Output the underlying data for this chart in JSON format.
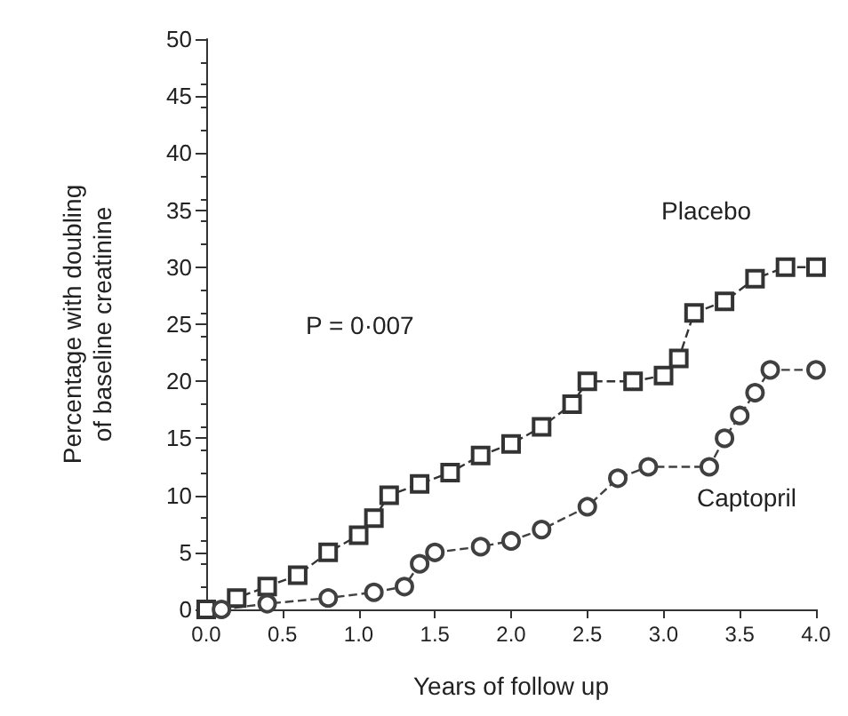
{
  "chart_data": {
    "type": "line",
    "xlabel": "Years of follow up",
    "ylabel": "Percentage with doubling\nof baseline creatinine",
    "annotations": [
      "P = 0·007"
    ],
    "series": [
      {
        "name": "Placebo",
        "color": "#333333",
        "marker": "square",
        "x": [
          0,
          0.2,
          0.4,
          0.6,
          0.8,
          1.0,
          1.1,
          1.2,
          1.4,
          1.6,
          1.8,
          2.0,
          2.2,
          2.4,
          2.5,
          2.8,
          3.0,
          3.1,
          3.2,
          3.4,
          3.6,
          3.8,
          4.0
        ],
        "values": [
          0,
          1,
          2,
          3,
          5,
          6.5,
          8,
          10,
          11,
          12,
          13.5,
          14.5,
          16,
          18,
          20,
          20,
          20.5,
          22,
          26,
          27,
          29,
          30,
          30
        ]
      },
      {
        "name": "Captopril",
        "color": "#404040",
        "marker": "circle",
        "x": [
          0.1,
          0.4,
          0.8,
          1.1,
          1.3,
          1.4,
          1.5,
          1.8,
          2.0,
          2.2,
          2.5,
          2.7,
          2.9,
          3.3,
          3.4,
          3.5,
          3.6,
          3.7,
          4.0
        ],
        "values": [
          0,
          0.5,
          1,
          1.5,
          2,
          4,
          5,
          5.5,
          6,
          7,
          9,
          11.5,
          12.5,
          12.5,
          15,
          17,
          19,
          21,
          21
        ]
      }
    ],
    "line_style": "dashed",
    "grid": false,
    "legend": false,
    "xlim": [
      0,
      4
    ],
    "xticks": [
      {
        "value": 0,
        "label": "0.0"
      },
      {
        "value": 0.5,
        "label": "0.5"
      },
      {
        "value": 1,
        "label": "1.0"
      },
      {
        "value": 1.5,
        "label": "1.5"
      },
      {
        "value": 2,
        "label": "2.0"
      },
      {
        "value": 2.5,
        "label": "2.5"
      },
      {
        "value": 3,
        "label": "3.0"
      },
      {
        "value": 3.5,
        "label": "3.5"
      },
      {
        "value": 4,
        "label": "4.0"
      }
    ],
    "ylim": [
      0,
      50
    ],
    "yticks": [
      0,
      5,
      10,
      15,
      20,
      25,
      30,
      35,
      40,
      45,
      50
    ]
  }
}
